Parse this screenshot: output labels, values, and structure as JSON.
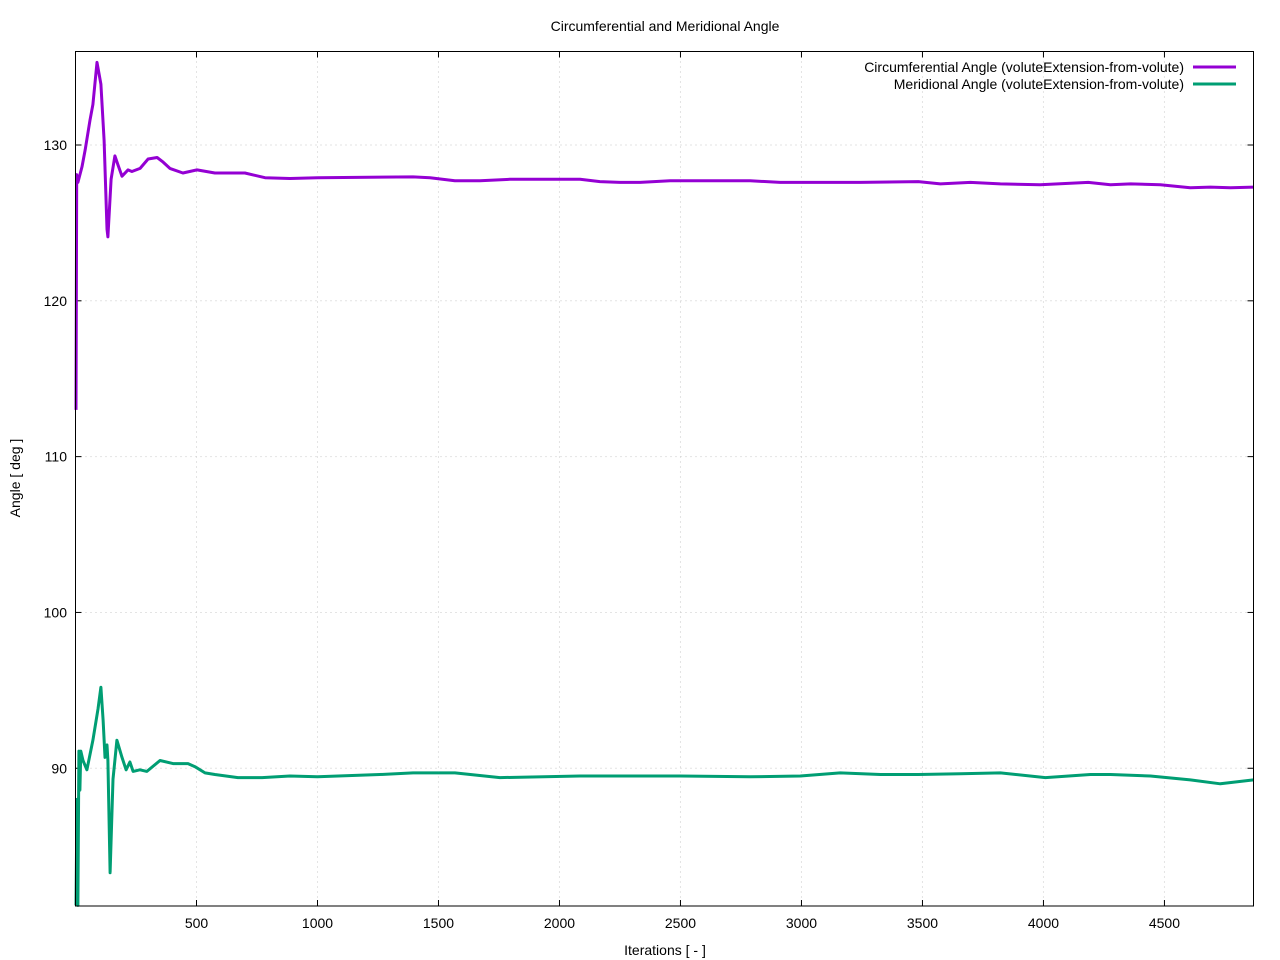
{
  "chart_data": {
    "type": "line",
    "title": "Circumferential and Meridional Angle",
    "xlabel": "Iterations [ - ]",
    "ylabel": "Angle [ deg ]",
    "xlim": [
      0,
      4868
    ],
    "ylim": [
      81.16,
      136.0
    ],
    "xticks": [
      500,
      1000,
      1500,
      2000,
      2500,
      3000,
      3500,
      4000,
      4500
    ],
    "yticks": [
      90,
      100,
      110,
      120,
      130
    ],
    "grid": true,
    "legend_position": "top-right",
    "series": [
      {
        "name": "Circumferential Angle (voluteExtension-from-volute)",
        "color": "#9400d3",
        "points": [
          [
            2,
            113.0
          ],
          [
            5,
            128.1
          ],
          [
            10,
            127.6
          ],
          [
            27,
            128.6
          ],
          [
            40,
            129.7
          ],
          [
            60,
            131.6
          ],
          [
            72,
            132.6
          ],
          [
            89,
            135.3
          ],
          [
            105,
            133.9
          ],
          [
            118,
            130.3
          ],
          [
            130,
            124.6
          ],
          [
            134,
            124.1
          ],
          [
            147,
            127.8
          ],
          [
            163,
            129.3
          ],
          [
            176,
            128.7
          ],
          [
            192,
            128.0
          ],
          [
            217,
            128.4
          ],
          [
            233,
            128.3
          ],
          [
            267,
            128.5
          ],
          [
            300,
            129.1
          ],
          [
            337,
            129.2
          ],
          [
            362,
            128.9
          ],
          [
            390,
            128.5
          ],
          [
            444,
            128.2
          ],
          [
            502,
            128.4
          ],
          [
            576,
            128.2
          ],
          [
            700,
            128.2
          ],
          [
            783,
            127.9
          ],
          [
            886,
            127.85
          ],
          [
            1000,
            127.9
          ],
          [
            1395,
            127.95
          ],
          [
            1465,
            127.9
          ],
          [
            1568,
            127.7
          ],
          [
            1671,
            127.7
          ],
          [
            1795,
            127.8
          ],
          [
            2085,
            127.8
          ],
          [
            2167,
            127.65
          ],
          [
            2250,
            127.6
          ],
          [
            2333,
            127.6
          ],
          [
            2457,
            127.7
          ],
          [
            2788,
            127.7
          ],
          [
            2912,
            127.6
          ],
          [
            3077,
            127.6
          ],
          [
            3243,
            127.6
          ],
          [
            3483,
            127.65
          ],
          [
            3574,
            127.5
          ],
          [
            3698,
            127.6
          ],
          [
            3822,
            127.5
          ],
          [
            3986,
            127.45
          ],
          [
            4185,
            127.6
          ],
          [
            4277,
            127.45
          ],
          [
            4360,
            127.5
          ],
          [
            4483,
            127.45
          ],
          [
            4607,
            127.25
          ],
          [
            4690,
            127.3
          ],
          [
            4773,
            127.25
          ],
          [
            4868,
            127.3
          ]
        ]
      },
      {
        "name": "Meridional Angle (voluteExtension-from-volute)",
        "color": "#009e73",
        "points": [
          [
            2,
            81.2
          ],
          [
            6,
            88.0
          ],
          [
            10,
            81.2
          ],
          [
            14,
            91.1
          ],
          [
            18,
            88.6
          ],
          [
            22,
            91.1
          ],
          [
            31,
            90.5
          ],
          [
            47,
            89.9
          ],
          [
            72,
            91.8
          ],
          [
            93,
            93.8
          ],
          [
            105,
            95.2
          ],
          [
            114,
            93.1
          ],
          [
            122,
            90.7
          ],
          [
            130,
            91.5
          ],
          [
            134,
            90.5
          ],
          [
            143,
            83.3
          ],
          [
            155,
            89.3
          ],
          [
            171,
            91.8
          ],
          [
            192,
            90.7
          ],
          [
            209,
            89.9
          ],
          [
            225,
            90.4
          ],
          [
            238,
            89.8
          ],
          [
            266,
            89.9
          ],
          [
            295,
            89.8
          ],
          [
            349,
            90.5
          ],
          [
            403,
            90.3
          ],
          [
            465,
            90.3
          ],
          [
            494,
            90.1
          ],
          [
            535,
            89.7
          ],
          [
            576,
            89.6
          ],
          [
            671,
            89.4
          ],
          [
            771,
            89.4
          ],
          [
            886,
            89.5
          ],
          [
            1000,
            89.45
          ],
          [
            1258,
            89.6
          ],
          [
            1395,
            89.7
          ],
          [
            1568,
            89.7
          ],
          [
            1754,
            89.4
          ],
          [
            2085,
            89.5
          ],
          [
            2250,
            89.5
          ],
          [
            2498,
            89.5
          ],
          [
            2788,
            89.45
          ],
          [
            2995,
            89.5
          ],
          [
            3160,
            89.7
          ],
          [
            3326,
            89.6
          ],
          [
            3483,
            89.6
          ],
          [
            3657,
            89.65
          ],
          [
            3822,
            89.7
          ],
          [
            4008,
            89.4
          ],
          [
            4194,
            89.6
          ],
          [
            4277,
            89.6
          ],
          [
            4442,
            89.5
          ],
          [
            4607,
            89.25
          ],
          [
            4731,
            89.0
          ],
          [
            4868,
            89.25
          ]
        ]
      }
    ]
  }
}
